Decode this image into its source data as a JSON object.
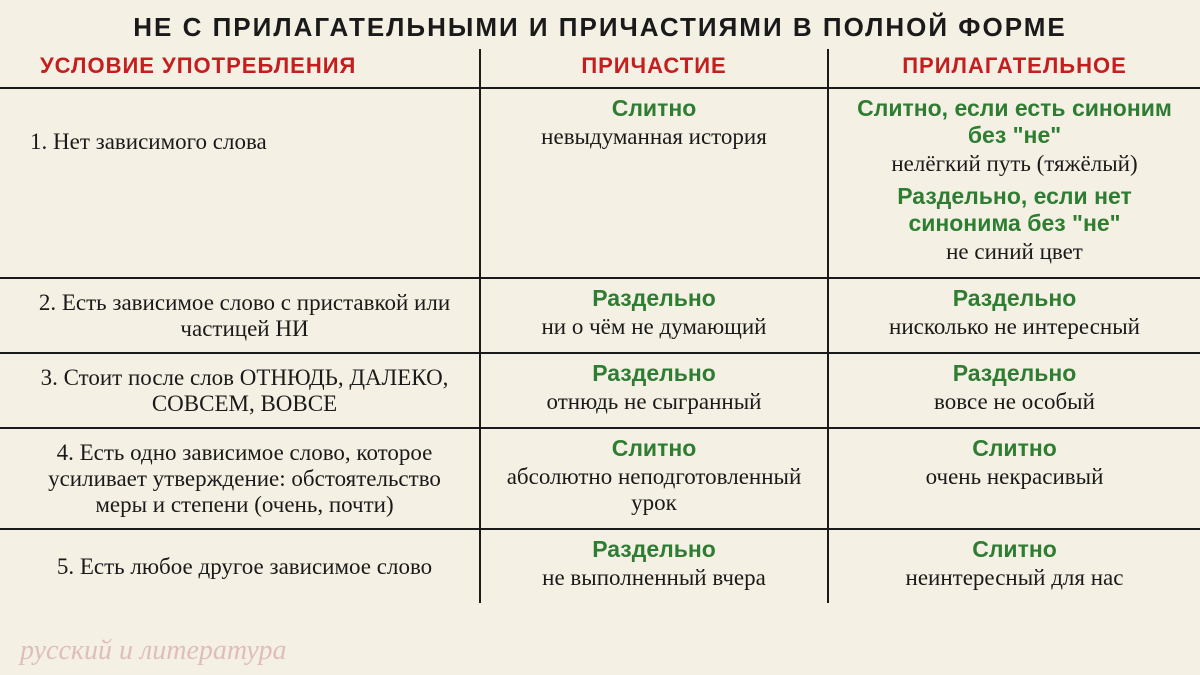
{
  "colors": {
    "background": "#f5f0e4",
    "text": "#1a1a1a",
    "red": "#c41e1e",
    "green": "#2e7d32",
    "border": "#1a1a1a",
    "watermark": "rgba(200,140,150,0.5)"
  },
  "fonts": {
    "title_size": 26,
    "header_size": 22,
    "body_size": 23,
    "rule_size": 23
  },
  "layout": {
    "col_widths": [
      "40%",
      "29%",
      "31%"
    ]
  },
  "title": "НЕ С ПРИЛАГАТЕЛЬНЫМИ И ПРИЧАСТИЯМИ В ПОЛНОЙ ФОРМЕ",
  "headers": {
    "col1": "УСЛОВИЕ УПОТРЕБЛЕНИЯ",
    "col2": "ПРИЧАСТИЕ",
    "col3": "ПРИЛАГАТЕЛЬНОЕ"
  },
  "rows": [
    {
      "condition": "1.  Нет зависимого слова",
      "participle": [
        {
          "rule": "Слитно",
          "example": "невыдуманная история"
        }
      ],
      "adjective": [
        {
          "rule": "Слитно, если есть синоним без \"не\"",
          "example": "нелёгкий путь (тяжёлый)"
        },
        {
          "rule": "Раздельно, если нет синонима без \"не\"",
          "example": "не синий цвет"
        }
      ]
    },
    {
      "condition": "2. Есть зависимое слово с приставкой или частицей НИ",
      "participle": [
        {
          "rule": "Раздельно",
          "example": "ни о чём не думающий"
        }
      ],
      "adjective": [
        {
          "rule": "Раздельно",
          "example": "нисколько не интересный"
        }
      ]
    },
    {
      "condition": "3. Стоит после слов ОТНЮДЬ, ДАЛЕКО, СОВСЕМ, ВОВСЕ",
      "participle": [
        {
          "rule": "Раздельно",
          "example": "отнюдь не сыгранный"
        }
      ],
      "adjective": [
        {
          "rule": "Раздельно",
          "example": "вовсе не особый"
        }
      ]
    },
    {
      "condition": "4. Есть одно зависимое слово, которое усиливает утверждение: обстоятельство меры и степени (очень, почти)",
      "participle": [
        {
          "rule": "Слитно",
          "example": "абсолютно неподготовленный урок"
        }
      ],
      "adjective": [
        {
          "rule": "Слитно",
          "example": "очень некрасивый"
        }
      ]
    },
    {
      "condition": "5. Есть любое другое зависимое слово",
      "participle": [
        {
          "rule": "Раздельно",
          "example": "не выполненный вчера"
        }
      ],
      "adjective": [
        {
          "rule": "Слитно",
          "example": "неинтересный для нас"
        }
      ]
    }
  ],
  "watermark": "русский и литература"
}
